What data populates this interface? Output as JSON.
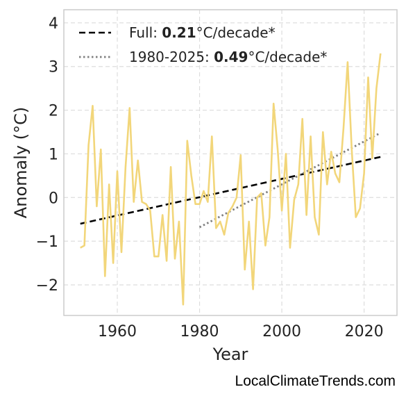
{
  "chart_data": {
    "type": "line",
    "xlabel": "Year",
    "ylabel": "Anomaly (°C)",
    "xlim": [
      1947,
      2028
    ],
    "ylim": [
      -2.7,
      4.3
    ],
    "xticks": [
      1960,
      1980,
      2000,
      2020
    ],
    "yticks": [
      -2,
      -1,
      0,
      1,
      2,
      3,
      4
    ],
    "ytick_labels": [
      "−2",
      "−1",
      "0",
      "1",
      "2",
      "3",
      "4"
    ],
    "grid": true,
    "legend_position": "top-left",
    "colors": {
      "series": "#f2d67a",
      "full_trend": "#000000",
      "recent_trend": "#808080"
    },
    "series": [
      {
        "x": [
          1951,
          1952,
          1953,
          1954,
          1955,
          1956,
          1957,
          1958,
          1959,
          1960,
          1961,
          1962,
          1963,
          1964,
          1965,
          1966,
          1967,
          1968,
          1969,
          1970,
          1971,
          1972,
          1973,
          1974,
          1975,
          1976,
          1977,
          1978,
          1979,
          1980,
          1981,
          1982,
          1983,
          1984,
          1985,
          1986,
          1987,
          1988,
          1989,
          1990,
          1991,
          1992,
          1993,
          1994,
          1995,
          1996,
          1997,
          1998,
          1999,
          2000,
          2001,
          2002,
          2003,
          2004,
          2005,
          2006,
          2007,
          2008,
          2009,
          2010,
          2011,
          2012,
          2013,
          2014,
          2015,
          2016,
          2017,
          2018,
          2019,
          2020,
          2021,
          2022,
          2023,
          2024
        ],
        "values": [
          -1.15,
          -1.1,
          1.2,
          2.1,
          -0.2,
          1.1,
          -1.8,
          0.3,
          -1.5,
          0.6,
          -1.25,
          0.7,
          2.05,
          -0.1,
          0.85,
          -0.1,
          -0.15,
          -0.3,
          -1.35,
          -1.35,
          -0.4,
          -1.45,
          0.7,
          -1.4,
          -0.55,
          -2.45,
          1.3,
          0.5,
          -0.15,
          -0.15,
          0.15,
          -0.1,
          1.4,
          -0.7,
          -0.55,
          -0.85,
          -0.35,
          -0.2,
          0.0,
          0.97,
          -1.65,
          -0.55,
          -2.1,
          0.0,
          0.1,
          -1.1,
          -0.45,
          2.15,
          1.1,
          -0.3,
          1.0,
          -1.15,
          -0.05,
          0.3,
          1.8,
          -0.4,
          1.4,
          -0.45,
          -0.85,
          1.5,
          0.3,
          1.05,
          0.55,
          0.35,
          1.6,
          3.1,
          1.1,
          -0.45,
          -0.25,
          0.55,
          2.75,
          0.9,
          2.5,
          3.3
        ]
      }
    ],
    "trends": [
      {
        "label_prefix": "Full: ",
        "label_value": "0.21",
        "label_suffix": "°C/decade*",
        "style": "dashed",
        "x": [
          1951,
          2024
        ],
        "y": [
          -0.6,
          0.93
        ]
      },
      {
        "label_prefix": "1980-2025: ",
        "label_value": "0.49",
        "label_suffix": "°C/decade*",
        "style": "dotted",
        "x": [
          1980,
          2024
        ],
        "y": [
          -0.68,
          1.48
        ]
      }
    ]
  },
  "credit": "LocalClimateTrends.com"
}
